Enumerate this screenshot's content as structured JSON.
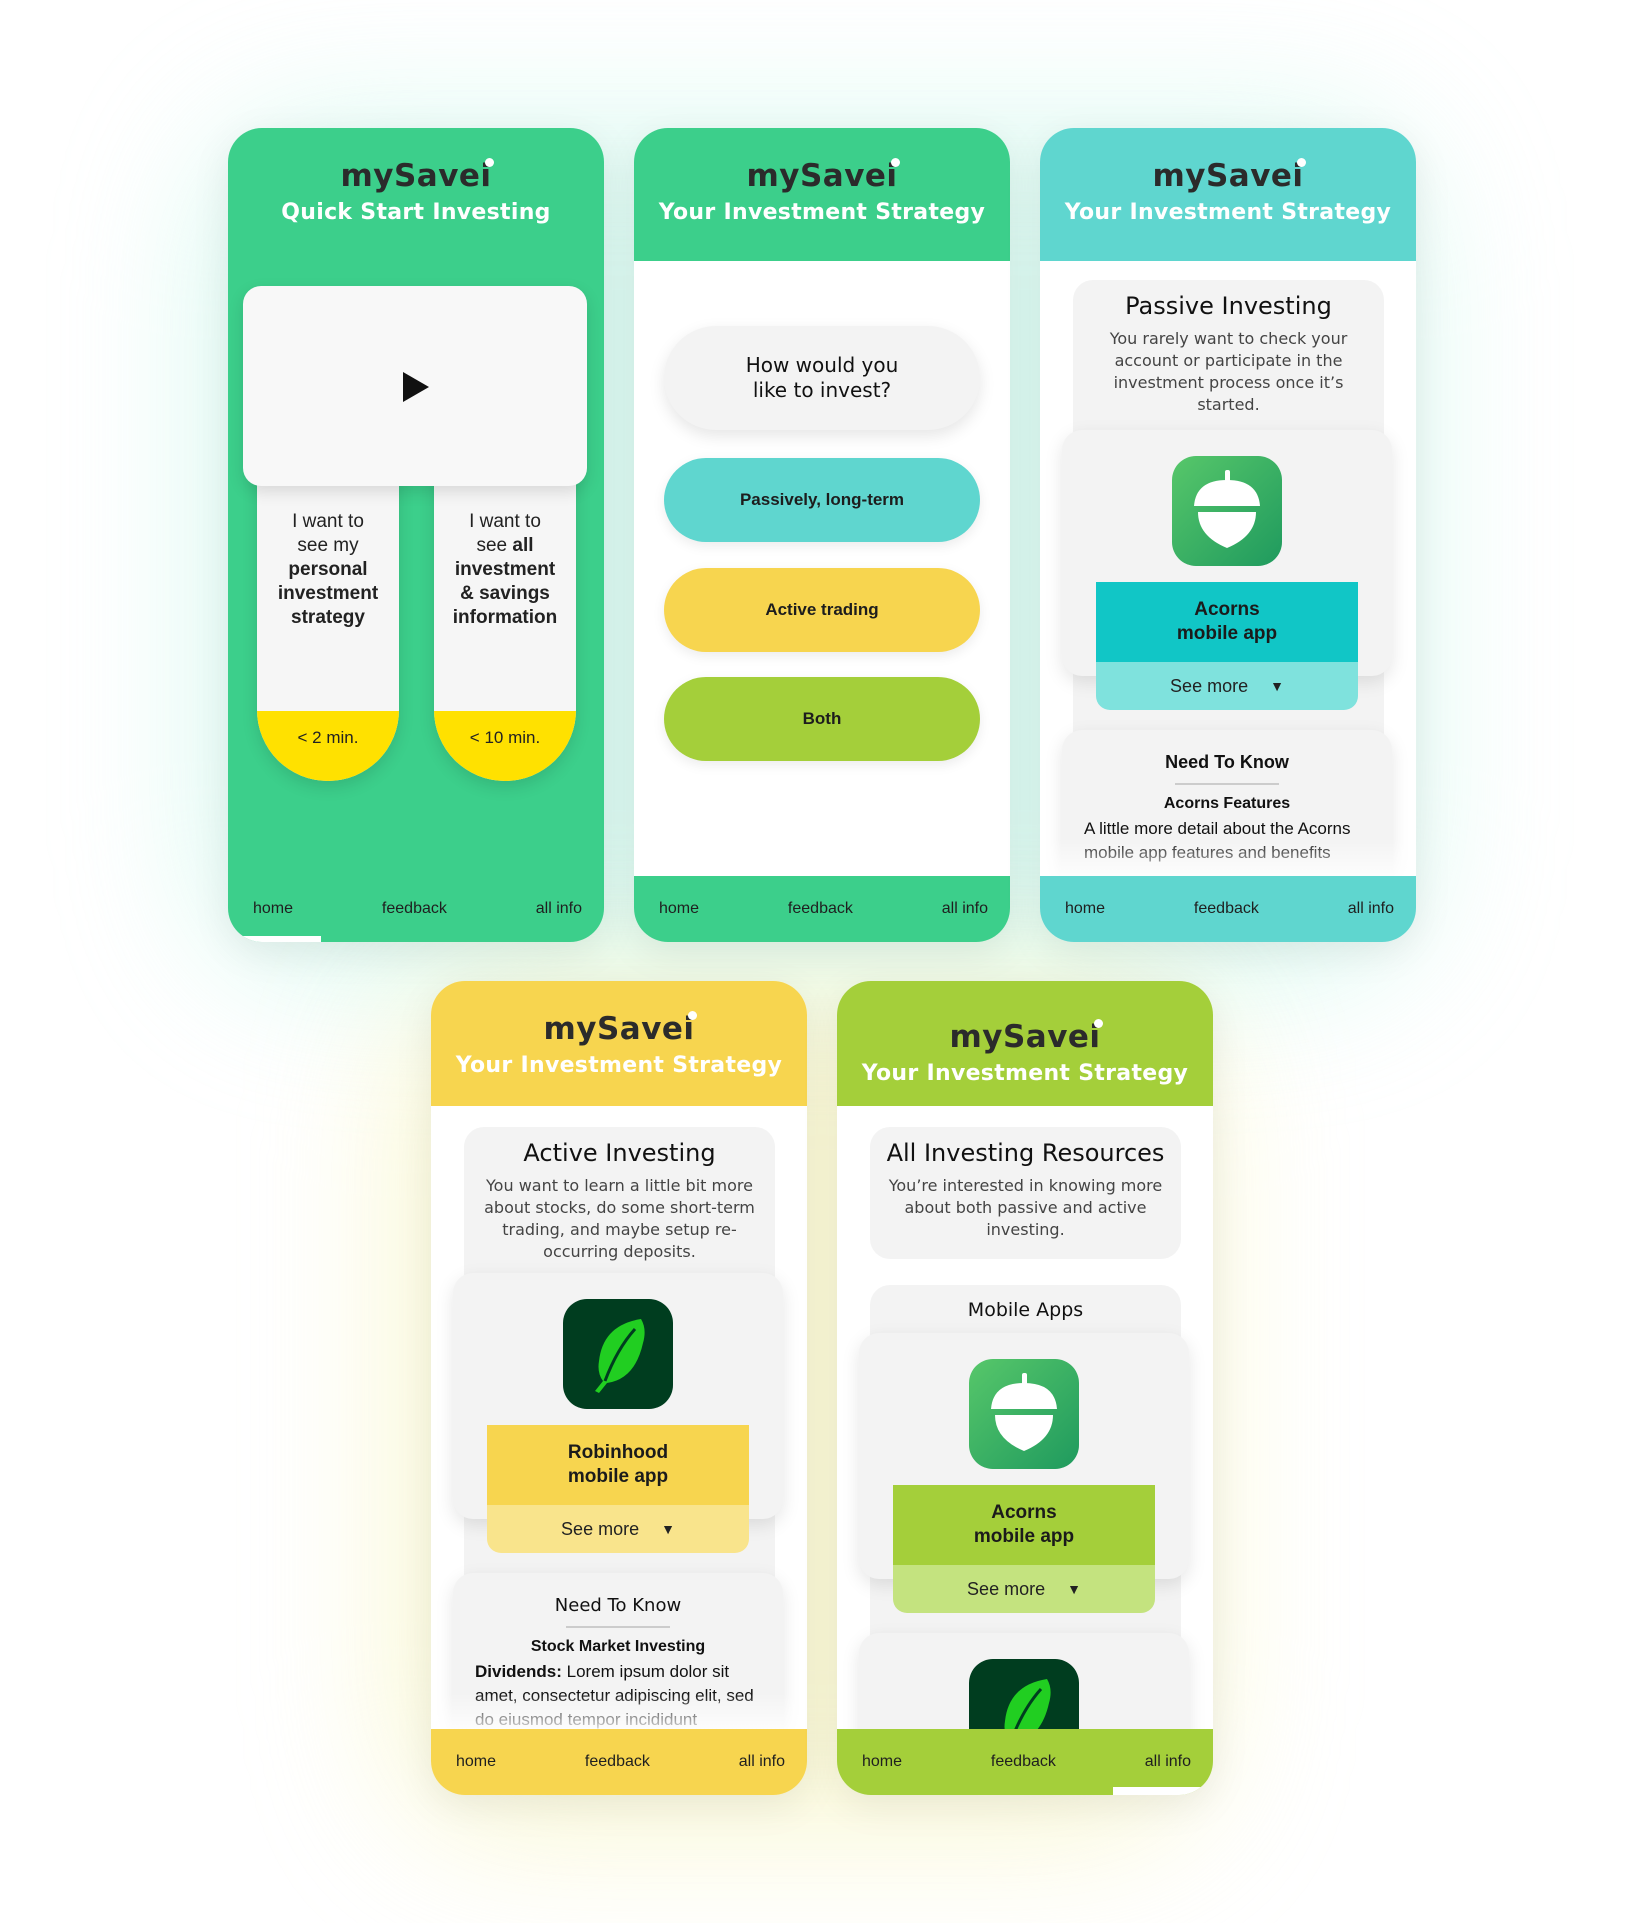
{
  "brand": "mySavei",
  "nav": {
    "home": "home",
    "feedback": "feedback",
    "all_info": "all info"
  },
  "colors": {
    "green": "#3ccf8b",
    "teal": "#5fd6cf",
    "yellow": "#f7d54f",
    "lime": "#a4cf3a",
    "accent_yellow": "#ffe100",
    "teal_dark": "#11c6c6"
  },
  "screen1": {
    "subtitle": "Quick Start Investing",
    "video_icon": "play-icon",
    "option_personal": {
      "line1": "I want to",
      "line2": "see my",
      "bold1": "personal",
      "bold2": "investment",
      "bold3": "strategy",
      "time": "< 2 min."
    },
    "option_all": {
      "line1": "I want to",
      "line2": "see",
      "bold_inline": "all",
      "bold1": "investment",
      "bold2": "& savings",
      "bold3": "information",
      "time": "< 10 min."
    }
  },
  "screen2": {
    "subtitle": "Your Investment Strategy",
    "question": "How would you like to invest?",
    "options": [
      "Passively, long-term",
      "Active trading",
      "Both"
    ]
  },
  "screen3": {
    "subtitle": "Your Investment Strategy",
    "heading": "Passive Investing",
    "description": "You rarely want to check your account or participate in the investment process once it’s started.",
    "app_icon": "acorn-icon",
    "app_name_1": "Acorns",
    "app_name_2": "mobile app",
    "see_more": "See more",
    "ntk_title": "Need To Know",
    "ntk_sub": "Acorns Features",
    "ntk_text": "A little more detail about the Acorns mobile app features and benefits"
  },
  "screen4": {
    "subtitle": "Your Investment Strategy",
    "heading": "Active Investing",
    "description": "You want to learn a little bit more about stocks, do some short-term trading, and maybe setup re-occurring deposits.",
    "app_icon": "feather-icon",
    "app_name_1": "Robinhood",
    "app_name_2": "mobile app",
    "see_more": "See more",
    "ntk_title": "Need To Know",
    "ntk_sub": "Stock Market Investing",
    "ntk_label": "Dividends:",
    "ntk_text": "Lorem ipsum dolor sit amet, consectetur adipiscing elit, sed do eiusmod tempor incididunt"
  },
  "screen5": {
    "subtitle": "Your Investment Strategy",
    "heading": "All Investing Resources",
    "description": "You’re interested in knowing more about both passive and active investing.",
    "section": "Mobile Apps",
    "app_icon": "acorn-icon",
    "app_name_1": "Acorns",
    "app_name_2": "mobile app",
    "see_more": "See more",
    "next_app_icon": "feather-icon"
  }
}
